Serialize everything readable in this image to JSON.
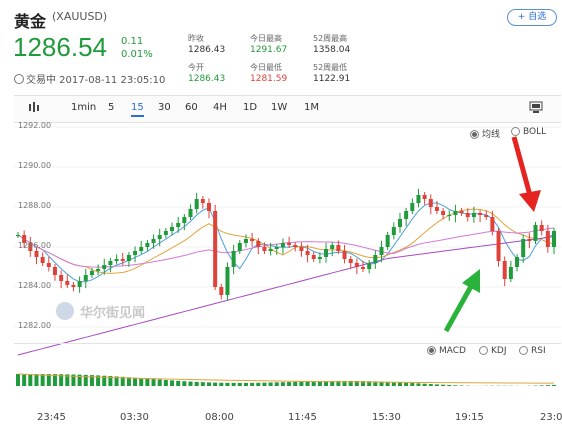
{
  "header": {
    "title": "黄金",
    "symbol": "(XAUUSD)",
    "add_button": "+ 自选",
    "price": "1286.54",
    "change": "0.11",
    "change_pct": "0.01%",
    "timestamp": "交易中 2017-08-11 23:05:10"
  },
  "stats": {
    "prev_close_label": "昨收",
    "prev_close": "1286.43",
    "open_label": "今开",
    "open": "1286.43",
    "day_high_label": "今日最高",
    "day_high": "1291.67",
    "day_low_label": "今日最低",
    "day_low": "1281.59",
    "week52_high_label": "52周最高",
    "week52_high": "1358.04",
    "week52_low_label": "52周最低",
    "week52_low": "1122.91"
  },
  "toolbar": {
    "items": [
      "1min",
      "5",
      "15",
      "30",
      "60",
      "4H",
      "1D",
      "1W",
      "1M"
    ],
    "active": "15"
  },
  "indicators_main": {
    "ma": "均线",
    "boll": "BOLL",
    "selected": "ma"
  },
  "indicators_sub": {
    "macd": "MACD",
    "kdj": "KDJ",
    "rsi": "RSI",
    "selected": "macd"
  },
  "watermark": "华尔街见闻",
  "colors": {
    "up": "#1f9b3b",
    "down": "#e0423a",
    "accent": "#2c6fd1"
  },
  "chart_data": {
    "type": "candlestick",
    "y_ticks": [
      "1292.00",
      "1290.00",
      "1288.00",
      "1286.00",
      "1284.00",
      "1282.00"
    ],
    "ylim": [
      1281.2,
      1292.3
    ],
    "x_ticks": [
      "23:45",
      "03:30",
      "08:00",
      "11:45",
      "15:30",
      "19:15",
      "23:0"
    ],
    "current_price": 1286.54,
    "closes": [
      1286.6,
      1286.2,
      1285.8,
      1285.5,
      1285.2,
      1285.0,
      1284.6,
      1284.3,
      1284.1,
      1284.0,
      1284.3,
      1284.6,
      1284.8,
      1284.9,
      1285.1,
      1285.3,
      1285.4,
      1285.3,
      1285.6,
      1285.8,
      1286.0,
      1286.2,
      1286.4,
      1286.6,
      1286.8,
      1287.0,
      1287.2,
      1287.5,
      1287.9,
      1288.4,
      1288.2,
      1287.8,
      1284.0,
      1283.6,
      1285.0,
      1285.8,
      1286.2,
      1286.4,
      1286.3,
      1286.0,
      1285.8,
      1285.9,
      1286.0,
      1286.2,
      1286.1,
      1286.0,
      1285.8,
      1285.6,
      1285.4,
      1285.5,
      1285.9,
      1286.1,
      1285.8,
      1285.4,
      1285.2,
      1285.0,
      1284.9,
      1285.2,
      1285.6,
      1286.0,
      1286.6,
      1287.0,
      1287.4,
      1287.8,
      1288.2,
      1288.6,
      1288.4,
      1288.0,
      1287.8,
      1287.6,
      1287.6,
      1287.8,
      1287.7,
      1287.5,
      1287.7,
      1287.6,
      1287.5,
      1286.8,
      1285.3,
      1284.4,
      1285.0,
      1285.5,
      1286.4,
      1286.3,
      1287.1,
      1286.8,
      1286.0,
      1286.8
    ]
  }
}
